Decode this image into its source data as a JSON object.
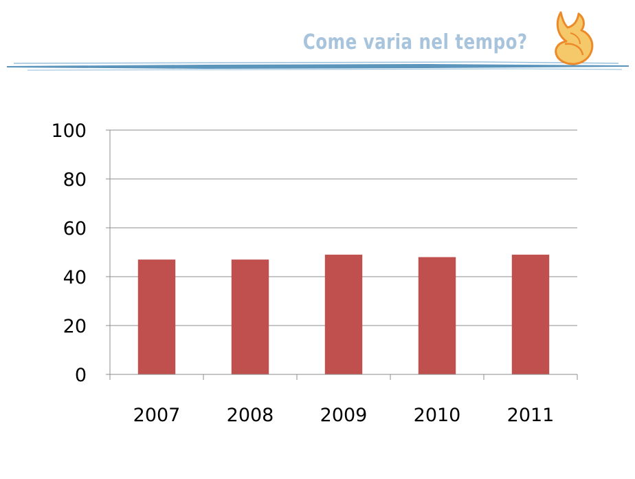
{
  "slide": {
    "title": "Come varia nel tempo?",
    "accent_color": "#a8c4dc",
    "line_color": "#4a8ab5",
    "logo_icon": "flame-icon"
  },
  "chart_data": {
    "type": "bar",
    "title": "",
    "xlabel": "",
    "ylabel": "",
    "categories": [
      "2007",
      "2008",
      "2009",
      "2010",
      "2011"
    ],
    "values": [
      47,
      47,
      49,
      48,
      49
    ],
    "ylim": [
      0,
      100
    ],
    "yticks": [
      0,
      20,
      40,
      60,
      80,
      100
    ],
    "grid": true,
    "legend": "none",
    "bar_color": "#c0504d"
  }
}
